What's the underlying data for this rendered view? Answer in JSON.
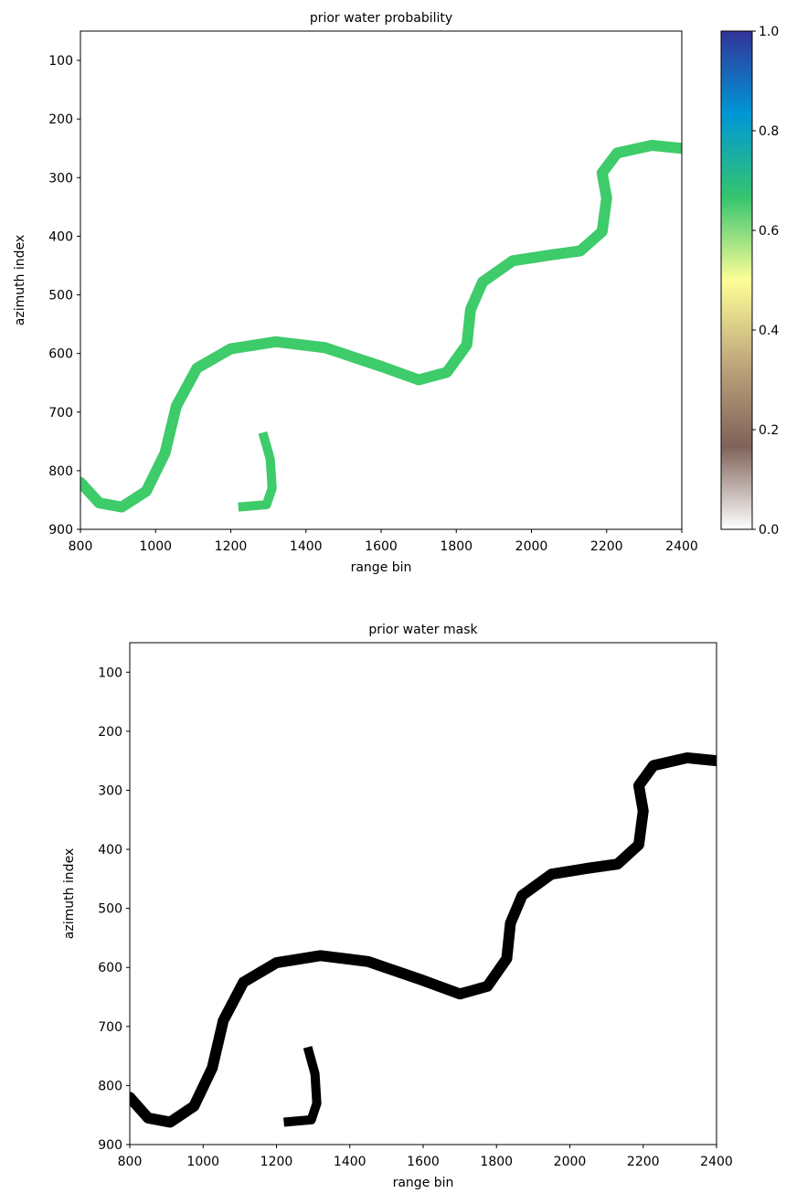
{
  "chart_data": [
    {
      "type": "image",
      "title": "prior water probability",
      "x_label": "range bin",
      "y_label": "azimuth index",
      "xlim": [
        800,
        2400
      ],
      "ylim": [
        900,
        50
      ],
      "xticks": [
        800,
        1000,
        1200,
        1400,
        1600,
        1800,
        2000,
        2200,
        2400
      ],
      "yticks": [
        100,
        200,
        300,
        400,
        500,
        600,
        700,
        800,
        900
      ],
      "color": "#3ecb6a",
      "colorbar": {
        "ylim": [
          0,
          1
        ],
        "yticks": [
          {
            "value": 0,
            "label": "0.0"
          },
          {
            "value": 0.2,
            "label": "0.2"
          },
          {
            "value": 0.4,
            "label": "0.4"
          },
          {
            "value": 0.6,
            "label": "0.6"
          },
          {
            "value": 0.8,
            "label": "0.8"
          },
          {
            "value": 1,
            "label": "1.0"
          }
        ],
        "colors": [
          "#ffffff",
          "#7f6259",
          "#bfa77c",
          "#fefe98",
          "#35c46e",
          "#0097d6",
          "#333399"
        ]
      }
    },
    {
      "type": "image",
      "title": "prior water mask",
      "x_label": "range bin",
      "y_label": "azimuth index",
      "xlim": [
        800,
        2400
      ],
      "ylim": [
        900,
        50
      ],
      "xticks": [
        800,
        1000,
        1200,
        1400,
        1600,
        1800,
        2000,
        2200,
        2400
      ],
      "yticks": [
        100,
        200,
        300,
        400,
        500,
        600,
        700,
        800,
        900
      ],
      "color": "#000000"
    }
  ]
}
